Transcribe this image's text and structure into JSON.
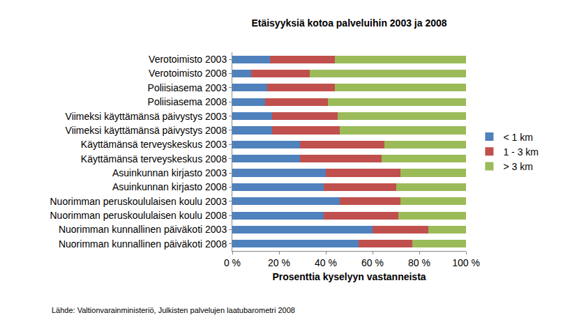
{
  "chart_data": {
    "type": "bar",
    "orientation": "horizontal",
    "stacked": true,
    "grid": false,
    "legend": "right",
    "title": "Etäisyyksiä kotoa palveluihin 2003 ja 2008",
    "x_label": "Prosenttia kyselyyn vastanneista",
    "annotations": [
      "Lähde: Valtionvarainministeriö, Julkisten palvelujen laatubarometri 2008"
    ],
    "categories": [
      "Verotoimisto 2003",
      "Verotoimisto 2008",
      "Poliisiasema 2003",
      "Poliisiasema 2008",
      "Viimeksi käyttämänsä päivystys 2003",
      "Viimeksi käyttämänsä päivystys 2008",
      "Käyttämänsä terveyskeskus 2003",
      "Käyttämänsä terveyskeskus 2008",
      "Asuinkunnan kirjasto 2003",
      "Asuinkunnan kirjasto 2008",
      "Nuorimman peruskoululaisen koulu 2003",
      "Nuorimman peruskoululaisen koulu 2008",
      "Nuorimman kunnallinen päiväkoti 2003",
      "Nuorimman kunnallinen päiväkoti 2008"
    ],
    "series": [
      {
        "name": "< 1 km",
        "color": "#4F81BD",
        "values": [
          16,
          8,
          15,
          14,
          17,
          17,
          29,
          29,
          40,
          39,
          46,
          39,
          60,
          54
        ]
      },
      {
        "name": "1 - 3 km",
        "color": "#C0504D",
        "values": [
          28,
          25,
          29,
          27,
          28,
          29,
          36,
          35,
          32,
          31,
          26,
          32,
          24,
          23
        ]
      },
      {
        "name": "> 3 km",
        "color": "#9BBB59",
        "values": [
          56,
          67,
          56,
          59,
          55,
          54,
          35,
          36,
          28,
          30,
          28,
          29,
          16,
          23
        ]
      }
    ],
    "xlim": [
      0,
      100
    ],
    "xticks": [
      {
        "value": 0,
        "label": "0 %"
      },
      {
        "value": 20,
        "label": "20 %"
      },
      {
        "value": 40,
        "label": "40 %"
      },
      {
        "value": 60,
        "label": "60 %"
      },
      {
        "value": 80,
        "label": "80 %"
      },
      {
        "value": 100,
        "label": "100 %"
      }
    ]
  }
}
